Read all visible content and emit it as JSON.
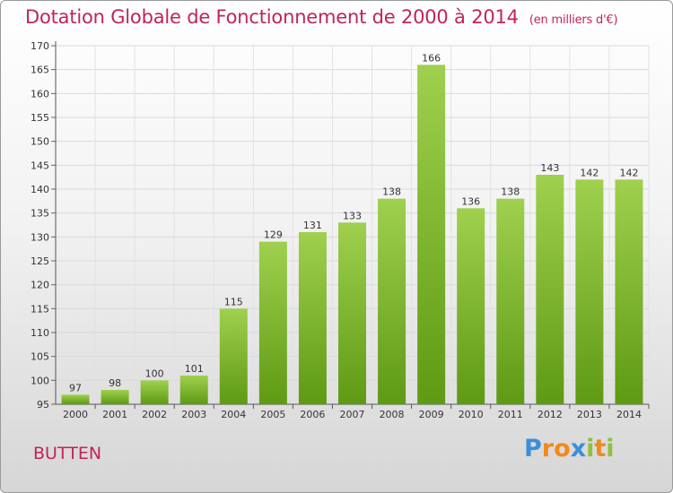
{
  "title": "Dotation Globale de Fonctionnement de 2000 à 2014",
  "unit": "(en milliers d'€)",
  "commune": "BUTTEN",
  "logo": {
    "p": "P",
    "r": "r",
    "o": "o",
    "x": "x",
    "i1": "i",
    "t": "t",
    "i2": "i"
  },
  "chart_data": {
    "type": "bar",
    "title": "Dotation Globale de Fonctionnement de 2000 à 2014",
    "subtitle": "(en milliers d'€)",
    "categories": [
      "2000",
      "2001",
      "2002",
      "2003",
      "2004",
      "2005",
      "2006",
      "2007",
      "2008",
      "2009",
      "2010",
      "2011",
      "2012",
      "2013",
      "2014"
    ],
    "values": [
      97,
      98,
      100,
      101,
      115,
      129,
      131,
      133,
      138,
      166,
      136,
      138,
      143,
      142,
      142
    ],
    "ylim": [
      95,
      170
    ],
    "yticks": [
      95,
      100,
      105,
      110,
      115,
      120,
      125,
      130,
      135,
      140,
      145,
      150,
      155,
      160,
      165,
      170
    ],
    "grid": true,
    "bar_color": "#7fbe3a"
  }
}
